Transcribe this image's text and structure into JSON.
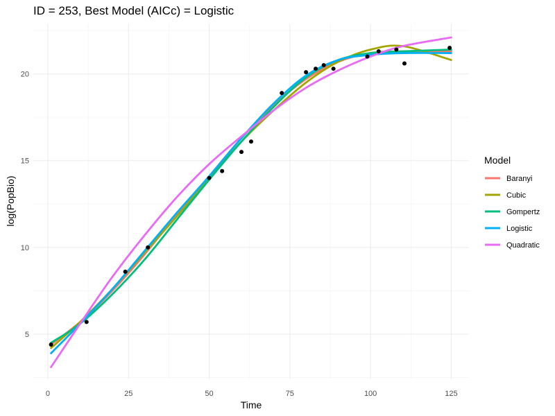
{
  "chart_data": {
    "type": "line",
    "title": "ID = 253, Best Model (AICc) = Logistic",
    "xlabel": "Time",
    "ylabel": "log(PopBio)",
    "xlim": [
      -4.5,
      130.5
    ],
    "ylim": [
      2.4,
      22.9
    ],
    "x_ticks": [
      0,
      25,
      50,
      75,
      100,
      125
    ],
    "y_ticks": [
      5,
      10,
      15,
      20
    ],
    "grid": true,
    "legend": {
      "title": "Model",
      "position": "right"
    },
    "points": {
      "color": "#000000",
      "x": [
        1.0,
        12.0,
        24.0,
        31.0,
        50.0,
        54.0,
        60.0,
        63.0,
        72.5,
        80.0,
        83.0,
        85.5,
        88.5,
        99.0,
        102.5,
        108.0,
        110.5,
        124.5
      ],
      "y": [
        4.4,
        5.7,
        8.6,
        10.0,
        14.0,
        14.4,
        15.5,
        16.1,
        18.9,
        20.1,
        20.3,
        20.5,
        20.3,
        21.0,
        21.3,
        21.4,
        20.6,
        21.5
      ]
    },
    "series": [
      {
        "name": "Baranyi",
        "color": "#F8766D",
        "x": [
          1,
          10,
          20,
          30,
          40,
          50,
          60,
          70,
          80,
          90,
          100,
          110,
          125
        ],
        "y": [
          4.4,
          5.7,
          7.5,
          9.6,
          11.9,
          14.1,
          16.3,
          18.2,
          19.7,
          20.7,
          21.2,
          21.3,
          21.3
        ]
      },
      {
        "name": "Cubic",
        "color": "#A3A500",
        "x": [
          1,
          10,
          20,
          30,
          40,
          50,
          60,
          70,
          80,
          90,
          100,
          110,
          125
        ],
        "y": [
          4.2,
          5.7,
          7.6,
          9.7,
          11.8,
          14.0,
          16.1,
          17.9,
          19.5,
          20.7,
          21.4,
          21.6,
          20.8
        ]
      },
      {
        "name": "Gompertz",
        "color": "#00BF7D",
        "x": [
          1,
          10,
          20,
          30,
          40,
          50,
          60,
          70,
          80,
          90,
          100,
          110,
          125
        ],
        "y": [
          4.5,
          5.6,
          7.3,
          9.3,
          11.6,
          13.9,
          16.1,
          18.1,
          19.8,
          20.8,
          21.2,
          21.3,
          21.4
        ]
      },
      {
        "name": "Logistic",
        "color": "#00B0F6",
        "x": [
          1,
          10,
          20,
          30,
          40,
          50,
          60,
          70,
          80,
          90,
          100,
          110,
          125
        ],
        "y": [
          3.9,
          5.6,
          7.6,
          9.8,
          12.0,
          14.1,
          16.3,
          18.3,
          19.9,
          20.8,
          21.1,
          21.2,
          21.2
        ]
      },
      {
        "name": "Quadratic",
        "color": "#E76BF3",
        "x": [
          1,
          10,
          20,
          30,
          40,
          50,
          60,
          70,
          80,
          90,
          100,
          110,
          125
        ],
        "y": [
          3.1,
          5.6,
          8.3,
          10.7,
          12.9,
          14.8,
          16.4,
          17.9,
          19.2,
          20.2,
          21.0,
          21.6,
          22.1
        ]
      }
    ]
  }
}
